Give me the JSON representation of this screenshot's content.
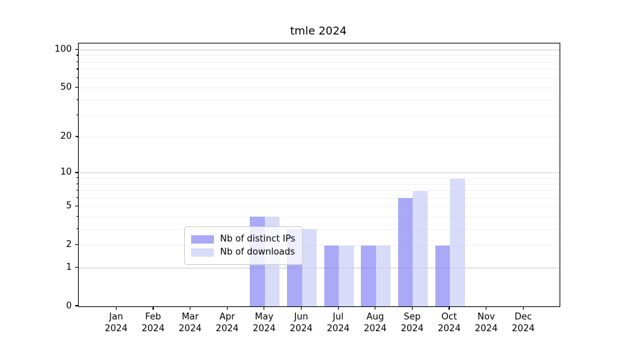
{
  "chart_data": {
    "type": "bar",
    "title": "tmle 2024",
    "categories": [
      {
        "month": "Jan",
        "year": "2024"
      },
      {
        "month": "Feb",
        "year": "2024"
      },
      {
        "month": "Mar",
        "year": "2024"
      },
      {
        "month": "Apr",
        "year": "2024"
      },
      {
        "month": "May",
        "year": "2024"
      },
      {
        "month": "Jun",
        "year": "2024"
      },
      {
        "month": "Jul",
        "year": "2024"
      },
      {
        "month": "Aug",
        "year": "2024"
      },
      {
        "month": "Sep",
        "year": "2024"
      },
      {
        "month": "Oct",
        "year": "2024"
      },
      {
        "month": "Nov",
        "year": "2024"
      },
      {
        "month": "Dec",
        "year": "2024"
      }
    ],
    "series": [
      {
        "name": "Nb of distinct IPs",
        "color": "rgba(132,132,244,0.7)",
        "values": [
          0,
          0,
          0,
          0,
          4,
          3,
          2,
          2,
          6,
          2,
          0,
          0
        ]
      },
      {
        "name": "Nb of downloads",
        "color": "rgba(199,205,245,0.7)",
        "values": [
          0,
          0,
          0,
          0,
          4,
          3,
          2,
          2,
          7,
          9,
          0,
          0
        ]
      }
    ],
    "xlabel": "",
    "ylabel": "",
    "yscale": "log1p",
    "ylim": [
      0,
      112.6
    ],
    "yaxis": {
      "tick_labels": [
        0,
        1,
        2,
        5,
        10,
        20,
        50,
        100
      ],
      "major_gridlines": [
        1,
        10,
        100
      ],
      "minor_gridlines": [
        2,
        3,
        4,
        5,
        6,
        7,
        8,
        9,
        20,
        30,
        40,
        50,
        60,
        70,
        80,
        90
      ]
    },
    "grid": true,
    "legend": {
      "position": "lower center"
    },
    "colors": {
      "grid_major": "#cccccc",
      "grid_minor": "#f1f1f3",
      "spine": "#000000",
      "text": "#000000",
      "legend_border": "#cccccc",
      "legend_background": "rgba(255,255,255,0.8)"
    }
  }
}
